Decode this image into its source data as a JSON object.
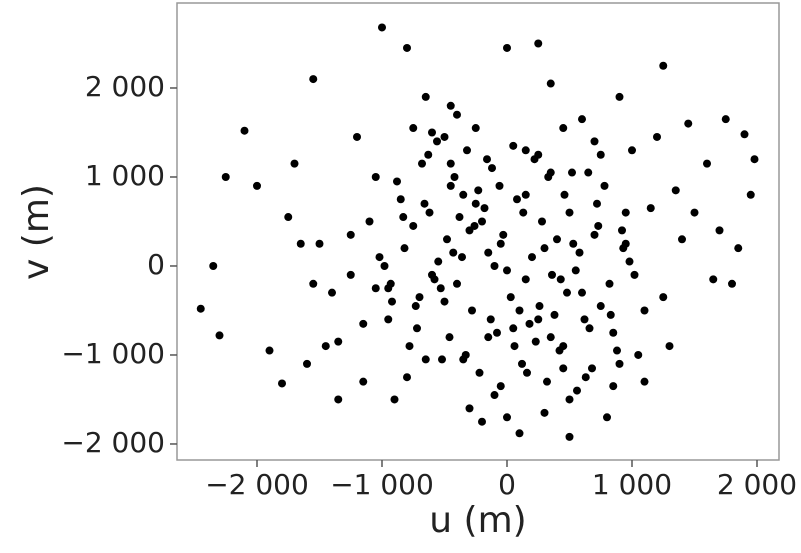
{
  "chart_data": {
    "type": "scatter",
    "xlabel": "u (m)",
    "ylabel": "v (m)",
    "color": "#000000",
    "xlim": [
      -2640,
      2176
    ],
    "ylim": [
      -2180,
      2955
    ],
    "xticks": [
      {
        "value": -2000,
        "label": "−2 000"
      },
      {
        "value": -1000,
        "label": "−1 000"
      },
      0,
      {
        "value": 1000,
        "label": "1 000"
      },
      {
        "value": 2000,
        "label": "2 000"
      }
    ],
    "yticks": [
      {
        "value": -2000,
        "label": "−2 000"
      },
      {
        "value": -1000,
        "label": "−1 000"
      },
      0,
      {
        "value": 1000,
        "label": "1 000"
      },
      {
        "value": 2000,
        "label": "2 000"
      }
    ],
    "x": [
      -1000,
      -2450,
      -2350,
      -2100,
      1980,
      1900,
      1950,
      1800,
      1250,
      500,
      100,
      0,
      250,
      -800,
      -1550,
      -2250,
      -2300,
      -1800,
      -1350,
      1600,
      1700,
      1850,
      1450,
      1750,
      -650,
      -450,
      350,
      800,
      1100,
      -1200,
      -1700,
      -1900,
      -2000,
      -1600,
      1300,
      1500,
      900,
      -300,
      600,
      -900,
      -100,
      200,
      -400,
      400,
      -600,
      600,
      -200,
      100,
      300,
      -300,
      0,
      -500,
      500,
      -700,
      700,
      -150,
      150,
      -250,
      250,
      -50,
      50,
      -350,
      350,
      -450,
      450,
      -550,
      550,
      -750,
      750,
      -850,
      850,
      -950,
      950,
      -1050,
      1050,
      -1150,
      1150,
      -1250,
      1250,
      -1350,
      1350,
      -120,
      120,
      -220,
      220,
      -320,
      320,
      -420,
      420,
      -520,
      520,
      -620,
      620,
      -720,
      720,
      -820,
      820,
      -920,
      920,
      -1020,
      1020,
      -80,
      80,
      -180,
      180,
      -280,
      280,
      -380,
      380,
      -480,
      480,
      -580,
      580,
      -680,
      680,
      -780,
      780,
      -880,
      880,
      -980,
      980,
      -1100,
      1100,
      -1400,
      1400,
      -1500,
      -30,
      30,
      -130,
      130,
      -230,
      230,
      -330,
      330,
      -430,
      430,
      -530,
      530,
      -630,
      630,
      -730,
      730,
      -830,
      830,
      -930,
      930,
      -60,
      60,
      -160,
      160,
      -260,
      260,
      -360,
      360,
      -460,
      460,
      -560,
      560,
      -660,
      660,
      -1650,
      1650,
      -1450,
      -1750,
      -1550,
      1200,
      -1150,
      900,
      -200,
      300,
      -600,
      700,
      -1050,
      1000,
      -400,
      450,
      -100,
      150,
      -800,
      850,
      0,
      -250,
      250,
      -500,
      500,
      -750,
      750,
      -350,
      350,
      -150,
      150,
      -450,
      450,
      -650,
      650,
      -50,
      50,
      -950,
      950,
      -1250
    ],
    "values": [
      2680,
      -480,
      0,
      1520,
      1200,
      1480,
      800,
      -200,
      2250,
      -1920,
      -1880,
      2450,
      2500,
      2450,
      2100,
      1000,
      -780,
      -1320,
      -1500,
      1150,
      400,
      200,
      1600,
      1650,
      1900,
      1800,
      2050,
      -1700,
      -1300,
      1450,
      1150,
      -950,
      900,
      -1100,
      -900,
      600,
      1900,
      -1600,
      1650,
      -1500,
      0,
      100,
      -200,
      300,
      -100,
      -300,
      500,
      -500,
      200,
      400,
      -50,
      -400,
      600,
      -350,
      350,
      150,
      -150,
      700,
      -600,
      250,
      -700,
      800,
      -800,
      900,
      -900,
      50,
      -50,
      450,
      -450,
      750,
      -750,
      -250,
      250,
      1000,
      -1000,
      -650,
      650,
      350,
      -350,
      -850,
      850,
      1100,
      -1100,
      -1200,
      1200,
      1300,
      -1300,
      1000,
      -950,
      -1050,
      1050,
      600,
      -600,
      -700,
      700,
      200,
      -200,
      -400,
      400,
      100,
      -100,
      -750,
      750,
      650,
      -650,
      -500,
      500,
      550,
      -550,
      300,
      -300,
      -150,
      150,
      1150,
      -1150,
      -900,
      900,
      950,
      -950,
      0,
      50,
      500,
      -500,
      -300,
      300,
      250,
      350,
      -350,
      -600,
      600,
      850,
      -850,
      -1000,
      1000,
      150,
      -150,
      -250,
      250,
      1250,
      -1250,
      -450,
      450,
      550,
      -550,
      -200,
      200,
      900,
      -900,
      1200,
      -1200,
      450,
      -450,
      100,
      -100,
      -800,
      800,
      1400,
      -1400,
      700,
      -700,
      250,
      -150,
      -900,
      550,
      -200,
      1450,
      -1300,
      -1100,
      -1750,
      -1650,
      1500,
      1400,
      -250,
      1300,
      1700,
      1550,
      -1450,
      1300,
      -1250,
      -1350,
      -1700,
      1550,
      1250,
      1450,
      -1500,
      1550,
      1250,
      -1050,
      1050,
      -800,
      800,
      1150,
      -1150,
      -1050,
      1050,
      -1350,
      1350,
      -600,
      600,
      -100
    ]
  }
}
